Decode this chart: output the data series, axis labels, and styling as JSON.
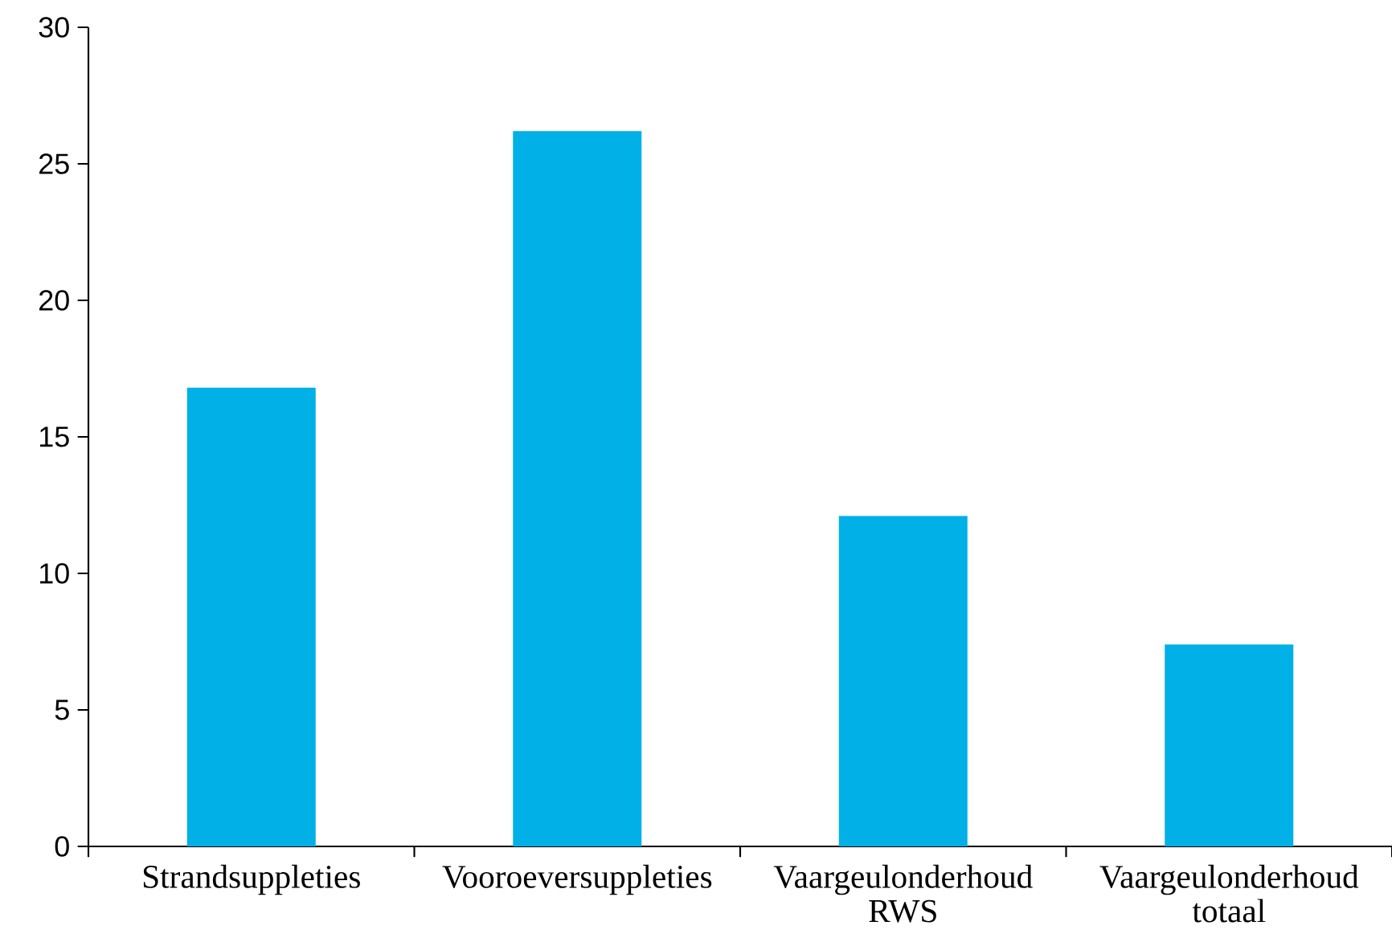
{
  "chart_data": {
    "type": "bar",
    "categories": [
      "Strandsuppleties",
      "Vooroeversuppleties",
      "Vaargeulonderhoud RWS",
      "Vaargeulonderhoud totaal"
    ],
    "values": [
      16.8,
      26.2,
      12.1,
      7.4
    ],
    "color": "#00b0e6",
    "ylim": [
      0,
      30
    ],
    "yticks": [
      0,
      5,
      10,
      15,
      20,
      25,
      30
    ],
    "grid": false
  }
}
